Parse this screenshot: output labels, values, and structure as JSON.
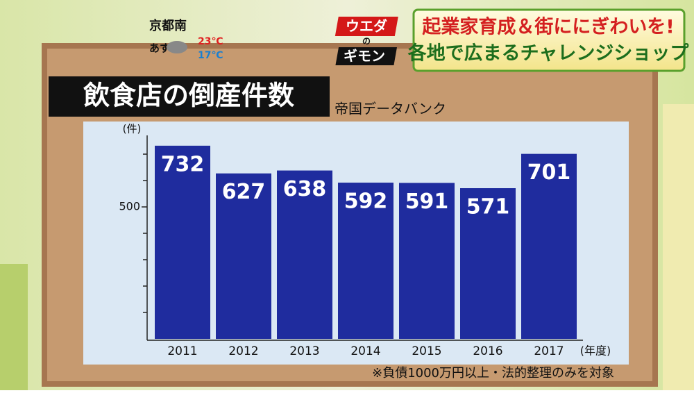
{
  "weather": {
    "city": "京都南",
    "day": "あす",
    "high": "23℃",
    "low": "17℃"
  },
  "logo": {
    "top": "ウエダ",
    "middle": "の",
    "bottom": "ギモン"
  },
  "headline": {
    "line1": "起業家育成＆街ににぎわいを!",
    "line2": "各地で広まるチャレンジショップ"
  },
  "chart_data": {
    "type": "bar",
    "title": "飲食店の倒産件数",
    "source": "帝国データバンク",
    "y_label": "(件)",
    "x_label": "(年度)",
    "footnote": "※負債1000万円以上・法的整理のみを対象",
    "categories": [
      "2011",
      "2012",
      "2013",
      "2014",
      "2015",
      "2016",
      "2017"
    ],
    "values": [
      732,
      627,
      638,
      592,
      591,
      571,
      701
    ],
    "color": "#1f2c9e",
    "ylim": [
      0,
      800
    ],
    "yticks": [
      500
    ],
    "y_minor_ticks": [
      100,
      200,
      300,
      400,
      600,
      700
    ]
  }
}
